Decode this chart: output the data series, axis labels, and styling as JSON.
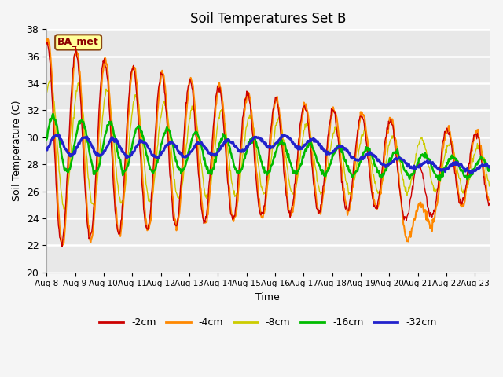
{
  "title": "Soil Temperatures Set B",
  "xlabel": "Time",
  "ylabel": "Soil Temperature (C)",
  "ylim": [
    20,
    38
  ],
  "yticks": [
    20,
    22,
    24,
    26,
    28,
    30,
    32,
    34,
    36,
    38
  ],
  "x_labels": [
    "Aug 8",
    "Aug 9",
    "Aug 10",
    "Aug 11",
    "Aug 12",
    "Aug 13",
    "Aug 14",
    "Aug 15",
    "Aug 16",
    "Aug 17",
    "Aug 18",
    "Aug 19",
    "Aug 20",
    "Aug 21",
    "Aug 22",
    "Aug 23"
  ],
  "legend_labels": [
    "-2cm",
    "-4cm",
    "-8cm",
    "-16cm",
    "-32cm"
  ],
  "legend_colors": [
    "#cc0000",
    "#ff8800",
    "#cccc00",
    "#00bb00",
    "#2222cc"
  ],
  "line_colors": [
    "#cc0000",
    "#ff8800",
    "#cccc00",
    "#00bb00",
    "#2222cc"
  ],
  "line_widths": [
    1.0,
    1.5,
    1.0,
    1.8,
    2.2
  ],
  "annotation_text": "BA_met",
  "annotation_color": "#8B0000",
  "annotation_bg": "#ffff99",
  "plot_bg": "#e8e8e8",
  "n_days": 15.5,
  "points_per_day": 48
}
